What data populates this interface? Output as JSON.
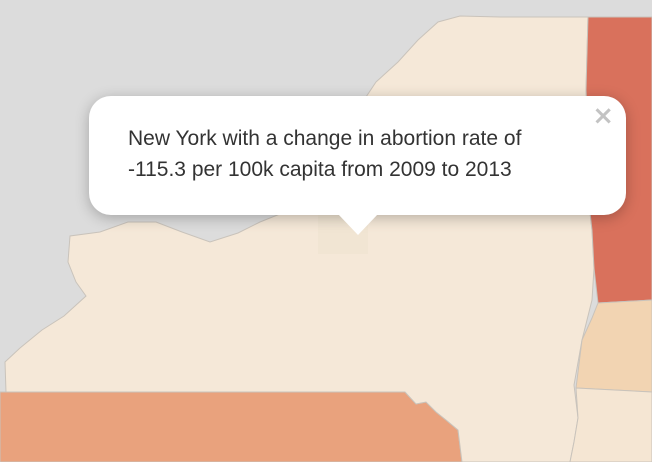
{
  "popup": {
    "line1": "New York with a change in abortion rate of",
    "line2": "-115.3 per 100k capita from 2009 to 2013",
    "close_symbol": "×"
  },
  "map_colors": {
    "background": "#dcdcdc",
    "new_york": "#f5e8d8",
    "vermont": "#d9715c",
    "pennsylvania": "#e9a27d",
    "massachusetts": "#f2d4b2",
    "connecticut": "#f5e6d3",
    "border": "#c9c3bb"
  },
  "selected_region": {
    "state": "New York",
    "change_value": -115.3,
    "unit": "per 100k capita",
    "start_year": 2009,
    "end_year": 2013
  }
}
